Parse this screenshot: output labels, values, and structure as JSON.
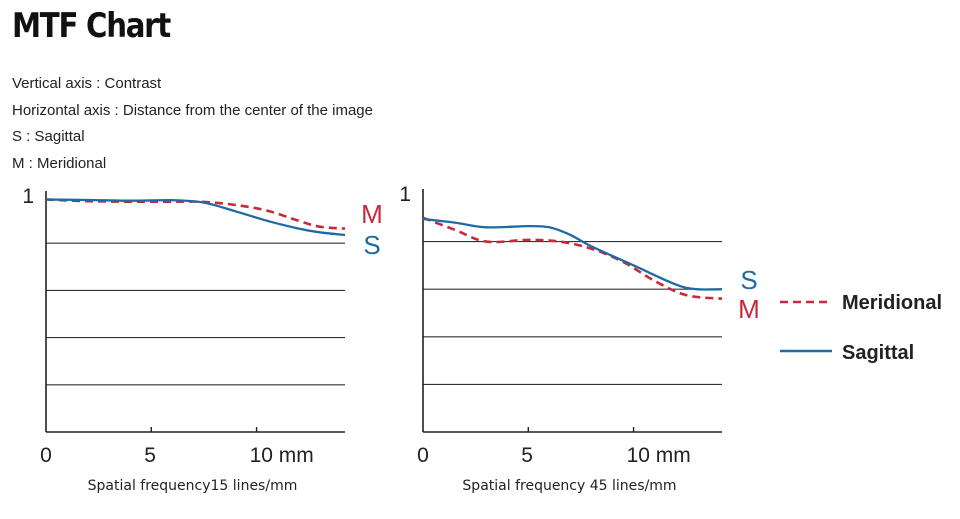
{
  "title": "MTF Chart",
  "description": [
    "Vertical axis : Contrast",
    "Horizontal axis : Distance from the center of the image",
    "S : Sagittal",
    "M : Meridional"
  ],
  "colors": {
    "meridional": "#c8283a",
    "sagittal": "#1f6aa5",
    "axis": "#222222",
    "grid": "#333333"
  },
  "legend": {
    "meridional_label": "Meridional",
    "sagittal_label": "Sagittal"
  },
  "chart_data": [
    {
      "type": "line",
      "title": "",
      "xlabel": "Spatial frequency15 lines/mm",
      "ylabel": "Contrast",
      "y_top_label": "1",
      "xlim": [
        0,
        14.2
      ],
      "ylim": [
        0,
        1
      ],
      "x_ticks": [
        0,
        5,
        10
      ],
      "x_tick_labels": [
        "0",
        "5",
        "10 mm"
      ],
      "y_gridlines": [
        0.2,
        0.4,
        0.6,
        0.8
      ],
      "curve_tags": {
        "top": "M",
        "bottom": "S"
      },
      "series": [
        {
          "name": "Meridional",
          "key": "meridional",
          "style": "dashed",
          "x": [
            0,
            2,
            4,
            6,
            7.5,
            9,
            10.5,
            12,
            13,
            14.2
          ],
          "y": [
            0.985,
            0.978,
            0.976,
            0.976,
            0.975,
            0.962,
            0.938,
            0.895,
            0.87,
            0.862
          ]
        },
        {
          "name": "Sagittal",
          "key": "sagittal",
          "style": "solid",
          "x": [
            0,
            2,
            4,
            6,
            7.5,
            9,
            10.5,
            12,
            13,
            14.2
          ],
          "y": [
            0.985,
            0.983,
            0.98,
            0.982,
            0.972,
            0.935,
            0.895,
            0.862,
            0.846,
            0.835
          ]
        }
      ]
    },
    {
      "type": "line",
      "title": "",
      "xlabel": "Spatial frequency 45 lines/mm",
      "ylabel": "Contrast",
      "y_top_label": "1",
      "xlim": [
        0,
        14.2
      ],
      "ylim": [
        0,
        1
      ],
      "x_ticks": [
        0,
        5,
        10
      ],
      "x_tick_labels": [
        "0",
        "5",
        "10 mm"
      ],
      "y_gridlines": [
        0.2,
        0.4,
        0.6,
        0.8
      ],
      "curve_tags": {
        "top": "S",
        "bottom": "M"
      },
      "series": [
        {
          "name": "Meridional",
          "key": "meridional",
          "style": "dashed",
          "x": [
            0,
            1.5,
            3,
            5,
            6.5,
            8,
            9.5,
            11,
            12.5,
            14.2
          ],
          "y": [
            0.9,
            0.85,
            0.8,
            0.807,
            0.8,
            0.77,
            0.715,
            0.635,
            0.575,
            0.56
          ]
        },
        {
          "name": "Sagittal",
          "key": "sagittal",
          "style": "solid",
          "x": [
            0,
            1.5,
            3,
            5,
            6,
            7,
            8,
            10,
            12,
            13,
            14.2
          ],
          "y": [
            0.895,
            0.88,
            0.86,
            0.865,
            0.86,
            0.828,
            0.78,
            0.7,
            0.62,
            0.6,
            0.6
          ]
        }
      ]
    }
  ]
}
